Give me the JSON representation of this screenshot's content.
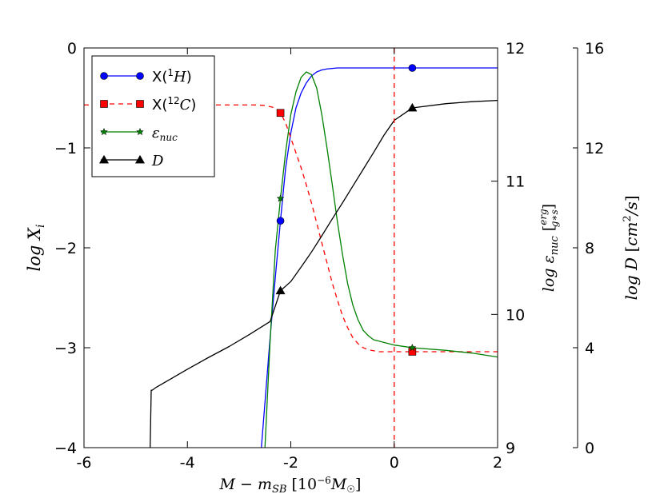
{
  "chart_data": {
    "type": "line",
    "title": "",
    "xlabel": "M − m_SB [10⁻⁶ M☉]",
    "x_range": [
      -6,
      2
    ],
    "x_ticks": [
      -6,
      -4,
      -2,
      0,
      2
    ],
    "x_tick_labels": [
      "-6",
      "-4",
      "-2",
      "0",
      "2"
    ],
    "vertical_marker": {
      "x": 0,
      "color": "#ff0000",
      "style": "dashed"
    },
    "axes": [
      {
        "id": "left",
        "label": "log X_i",
        "range": [
          -4,
          0
        ],
        "ticks": [
          -4,
          -3,
          -2,
          -1,
          0
        ],
        "tick_labels": [
          "−4",
          "−3",
          "−2",
          "−1",
          "0"
        ]
      },
      {
        "id": "right1",
        "label": "log ε_nuc [erg/(g*s)]",
        "range": [
          9,
          12
        ],
        "ticks": [
          9,
          10,
          11,
          12
        ],
        "tick_labels": [
          "9",
          "10",
          "11",
          "12"
        ]
      },
      {
        "id": "right2",
        "label": "log D [cm²/s]",
        "range": [
          0,
          16
        ],
        "ticks": [
          0,
          4,
          8,
          12,
          16
        ],
        "tick_labels": [
          "0",
          "4",
          "8",
          "12",
          "16"
        ]
      }
    ],
    "legend_location": "top-left",
    "series": [
      {
        "name": "X(¹H)",
        "legend_main": "X(",
        "legend_sup": "1",
        "legend_var": "H",
        "legend_close": ")",
        "axis": "left",
        "color": "#0000ff",
        "line_style": "solid",
        "marker": "circle",
        "x": [
          -2.6,
          -2.4,
          -2.3,
          -2.2,
          -2.1,
          -2.0,
          -1.9,
          -1.8,
          -1.7,
          -1.6,
          -1.5,
          -1.4,
          -1.3,
          -1.2,
          -1.1,
          -1.0,
          -0.9,
          -0.5,
          0,
          0.35,
          2.0
        ],
        "y": [
          -4.2,
          -2.9,
          -2.3,
          -1.73,
          -1.2,
          -0.85,
          -0.6,
          -0.45,
          -0.35,
          -0.28,
          -0.24,
          -0.22,
          -0.21,
          -0.205,
          -0.2,
          -0.2,
          -0.2,
          -0.2,
          -0.2,
          -0.2,
          -0.2
        ],
        "markers_at": [
          [
            -2.2,
            -1.73
          ],
          [
            0.35,
            -0.2
          ]
        ]
      },
      {
        "name": "X(¹²C)",
        "legend_main": "X(",
        "legend_sup": "12",
        "legend_var": "C",
        "legend_close": ")",
        "axis": "left",
        "color": "#ff0000",
        "line_style": "dashed",
        "marker": "square",
        "x": [
          -6.0,
          -3.0,
          -2.7,
          -2.5,
          -2.3,
          -2.2,
          -2.1,
          -2.0,
          -1.9,
          -1.8,
          -1.7,
          -1.6,
          -1.5,
          -1.4,
          -1.3,
          -1.2,
          -1.1,
          -1.0,
          -0.9,
          -0.8,
          -0.7,
          -0.6,
          -0.5,
          -0.4,
          -0.3,
          -0.2,
          0,
          0.35,
          2.0
        ],
        "y": [
          -0.57,
          -0.57,
          -0.57,
          -0.575,
          -0.6,
          -0.65,
          -0.75,
          -0.9,
          -1.05,
          -1.2,
          -1.37,
          -1.55,
          -1.75,
          -1.95,
          -2.15,
          -2.35,
          -2.52,
          -2.68,
          -2.8,
          -2.9,
          -2.96,
          -3.0,
          -3.02,
          -3.03,
          -3.04,
          -3.04,
          -3.04,
          -3.04,
          -3.04
        ],
        "markers_at": [
          [
            -2.2,
            -0.65
          ],
          [
            0.35,
            -3.04
          ]
        ]
      },
      {
        "name": "ε_nuc",
        "legend_main": "",
        "legend_sup": "",
        "legend_var": "ε",
        "legend_sub": "nuc",
        "legend_close": "",
        "axis": "right1",
        "color": "#008000",
        "line_style": "solid",
        "marker": "star",
        "x": [
          -2.5,
          -2.4,
          -2.3,
          -2.2,
          -2.1,
          -2.0,
          -1.9,
          -1.8,
          -1.7,
          -1.6,
          -1.5,
          -1.4,
          -1.3,
          -1.2,
          -1.1,
          -1.0,
          -0.9,
          -0.8,
          -0.7,
          -0.6,
          -0.5,
          -0.4,
          -0.3,
          -0.2,
          0,
          0.35,
          1.0,
          1.5,
          2.0
        ],
        "y": [
          9.0,
          9.8,
          10.48,
          10.87,
          11.22,
          11.5,
          11.67,
          11.78,
          11.82,
          11.8,
          11.7,
          11.5,
          11.25,
          10.98,
          10.7,
          10.45,
          10.23,
          10.07,
          9.96,
          9.88,
          9.84,
          9.81,
          9.8,
          9.79,
          9.77,
          9.75,
          9.73,
          9.71,
          9.68
        ],
        "markers_at": [
          [
            -2.2,
            10.87
          ],
          [
            0.35,
            9.75
          ]
        ]
      },
      {
        "name": "D",
        "legend_main": "",
        "legend_sup": "",
        "legend_var": "D",
        "legend_close": "",
        "axis": "right2",
        "color": "#000000",
        "line_style": "solid",
        "marker": "triangle",
        "x": [
          -4.72,
          -4.7,
          -4.68,
          -4.6,
          -4.4,
          -4.0,
          -3.6,
          -3.2,
          -2.8,
          -2.4,
          -2.2,
          -2.0,
          -1.8,
          -1.6,
          -1.4,
          -1.2,
          -1.0,
          -0.8,
          -0.6,
          -0.4,
          -0.2,
          0,
          0.35,
          1.0,
          1.5,
          2.0
        ],
        "y": [
          0,
          2.3,
          2.3,
          2.42,
          2.66,
          3.14,
          3.6,
          4.04,
          4.53,
          5.05,
          6.28,
          6.65,
          7.23,
          7.83,
          8.48,
          9.15,
          9.8,
          10.47,
          11.14,
          11.81,
          12.5,
          13.1,
          13.6,
          13.77,
          13.85,
          13.9
        ],
        "markers_at": [
          [
            -2.2,
            6.28
          ],
          [
            0.35,
            13.6
          ]
        ]
      }
    ]
  }
}
